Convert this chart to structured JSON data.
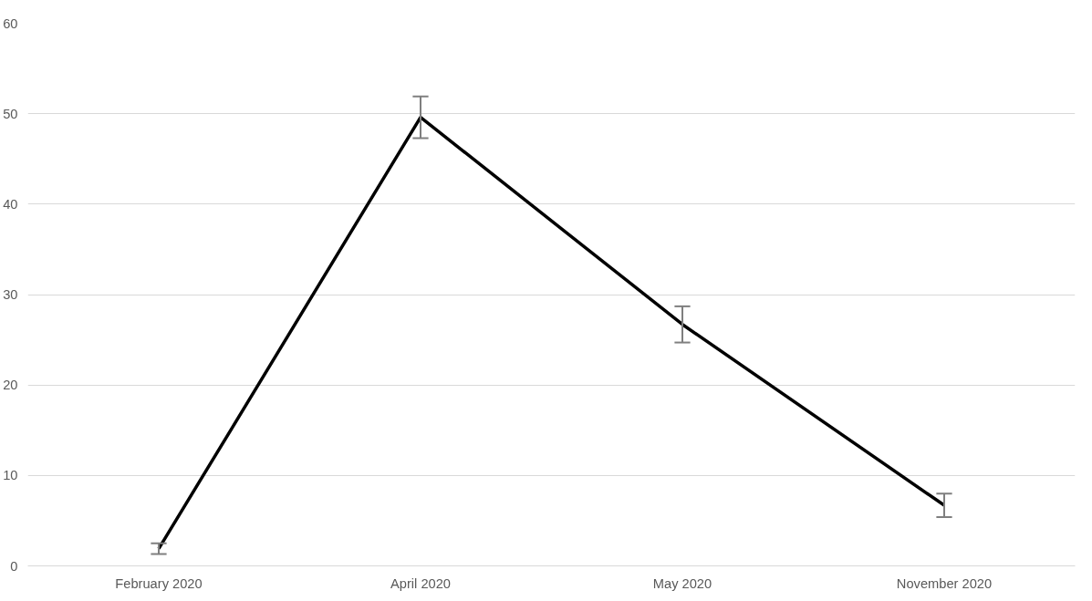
{
  "chart_data": {
    "type": "line",
    "categories": [
      "February 2020",
      "April 2020",
      "May 2020",
      "November 2020"
    ],
    "series": [
      {
        "color": "#000000",
        "values": [
          1.9,
          49.6,
          26.7,
          6.7
        ],
        "errors": [
          0.6,
          2.3,
          2.0,
          1.3
        ]
      }
    ],
    "ylim": [
      0,
      60
    ],
    "yticks": [
      0,
      10,
      20,
      30,
      40,
      50,
      60
    ],
    "grid": "y",
    "marker": "none",
    "line_style": "solid"
  }
}
